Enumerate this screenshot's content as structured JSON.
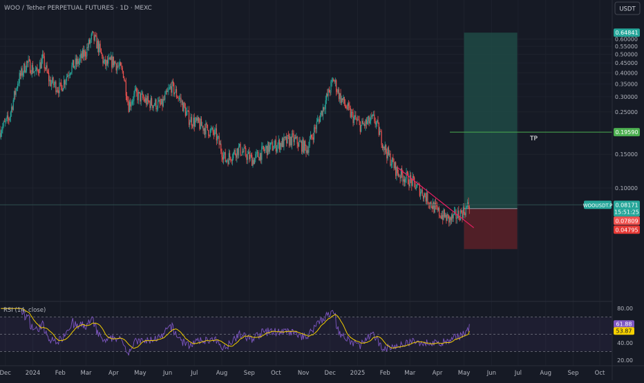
{
  "header": {
    "symbol_title": "WOO / Tether PERPETUAL FUTURES · 1D · MEXC",
    "currency_button": "USDT"
  },
  "rsi_panel": {
    "label": "RSI (14, close)"
  },
  "colors": {
    "background": "#161a25",
    "up": "#26a69a",
    "down": "#ef5350",
    "rsi_line": "#7e57c2",
    "rsi_ma": "#f5d000",
    "target_zone": "#1f4a45",
    "stop_zone": "#5b2128",
    "tp_line": "#4caf50",
    "trendline": "#e91e63"
  },
  "chart_data": [
    {
      "type": "candlestick",
      "title": "",
      "y_scale": "log",
      "ylim": [
        0.028,
        0.78
      ],
      "xlim": [
        "2023-11-25",
        "2025-10-15"
      ],
      "x_ticks": [
        {
          "label": "Dec",
          "date": "2023-12-01"
        },
        {
          "label": "2024",
          "date": "2024-01-01"
        },
        {
          "label": "Feb",
          "date": "2024-02-01"
        },
        {
          "label": "Mar",
          "date": "2024-03-01"
        },
        {
          "label": "Apr",
          "date": "2024-04-01"
        },
        {
          "label": "May",
          "date": "2024-05-01"
        },
        {
          "label": "Jun",
          "date": "2024-06-01"
        },
        {
          "label": "Jul",
          "date": "2024-07-01"
        },
        {
          "label": "Aug",
          "date": "2024-08-01"
        },
        {
          "label": "Sep",
          "date": "2024-09-01"
        },
        {
          "label": "Oct",
          "date": "2024-10-01"
        },
        {
          "label": "Nov",
          "date": "2024-11-01"
        },
        {
          "label": "Dec",
          "date": "2024-12-01"
        },
        {
          "label": "2025",
          "date": "2025-01-01"
        },
        {
          "label": "Feb",
          "date": "2025-02-01"
        },
        {
          "label": "Mar",
          "date": "2025-03-01"
        },
        {
          "label": "Apr",
          "date": "2025-04-01"
        },
        {
          "label": "May",
          "date": "2025-05-01"
        },
        {
          "label": "Jun",
          "date": "2025-06-01"
        },
        {
          "label": "Jul",
          "date": "2025-07-01"
        },
        {
          "label": "Aug",
          "date": "2025-08-01"
        },
        {
          "label": "Sep",
          "date": "2025-09-01"
        },
        {
          "label": "Oct",
          "date": "2025-10-01"
        }
      ],
      "y_ticks": [
        {
          "label": "0.60000",
          "value": 0.6
        },
        {
          "label": "0.55000",
          "value": 0.55
        },
        {
          "label": "0.50000",
          "value": 0.5
        },
        {
          "label": "0.45000",
          "value": 0.45
        },
        {
          "label": "0.40000",
          "value": 0.4
        },
        {
          "label": "0.35000",
          "value": 0.35
        },
        {
          "label": "0.30000",
          "value": 0.3
        },
        {
          "label": "0.25000",
          "value": 0.25
        },
        {
          "label": "0.15000",
          "value": 0.15
        },
        {
          "label": "0.10000",
          "value": 0.1
        }
      ],
      "price_path": [
        {
          "date": "2023-11-25",
          "close": 0.2
        },
        {
          "date": "2023-12-05",
          "close": 0.23
        },
        {
          "date": "2023-12-15",
          "close": 0.36
        },
        {
          "date": "2023-12-25",
          "close": 0.45
        },
        {
          "date": "2024-01-05",
          "close": 0.4
        },
        {
          "date": "2024-01-12",
          "close": 0.47
        },
        {
          "date": "2024-01-20",
          "close": 0.36
        },
        {
          "date": "2024-02-01",
          "close": 0.33
        },
        {
          "date": "2024-02-12",
          "close": 0.42
        },
        {
          "date": "2024-02-22",
          "close": 0.46
        },
        {
          "date": "2024-03-01",
          "close": 0.52
        },
        {
          "date": "2024-03-08",
          "close": 0.62
        },
        {
          "date": "2024-03-14",
          "close": 0.56
        },
        {
          "date": "2024-03-22",
          "close": 0.44
        },
        {
          "date": "2024-04-01",
          "close": 0.46
        },
        {
          "date": "2024-04-12",
          "close": 0.4
        },
        {
          "date": "2024-04-18",
          "close": 0.27
        },
        {
          "date": "2024-04-25",
          "close": 0.31
        },
        {
          "date": "2024-05-10",
          "close": 0.28
        },
        {
          "date": "2024-05-25",
          "close": 0.27
        },
        {
          "date": "2024-06-05",
          "close": 0.34
        },
        {
          "date": "2024-06-15",
          "close": 0.29
        },
        {
          "date": "2024-06-25",
          "close": 0.23
        },
        {
          "date": "2024-07-10",
          "close": 0.21
        },
        {
          "date": "2024-07-25",
          "close": 0.19
        },
        {
          "date": "2024-08-05",
          "close": 0.14
        },
        {
          "date": "2024-08-20",
          "close": 0.16
        },
        {
          "date": "2024-09-05",
          "close": 0.14
        },
        {
          "date": "2024-09-20",
          "close": 0.16
        },
        {
          "date": "2024-10-05",
          "close": 0.17
        },
        {
          "date": "2024-10-20",
          "close": 0.18
        },
        {
          "date": "2024-11-05",
          "close": 0.16
        },
        {
          "date": "2024-11-20",
          "close": 0.24
        },
        {
          "date": "2024-12-05",
          "close": 0.37
        },
        {
          "date": "2024-12-12",
          "close": 0.3
        },
        {
          "date": "2024-12-25",
          "close": 0.24
        },
        {
          "date": "2025-01-05",
          "close": 0.21
        },
        {
          "date": "2025-01-20",
          "close": 0.23
        },
        {
          "date": "2025-02-01",
          "close": 0.16
        },
        {
          "date": "2025-02-15",
          "close": 0.12
        },
        {
          "date": "2025-03-01",
          "close": 0.11
        },
        {
          "date": "2025-03-15",
          "close": 0.095
        },
        {
          "date": "2025-04-01",
          "close": 0.075
        },
        {
          "date": "2025-04-15",
          "close": 0.068
        },
        {
          "date": "2025-05-01",
          "close": 0.076
        },
        {
          "date": "2025-05-07",
          "close": 0.0817
        }
      ],
      "long_position": {
        "start": "2025-05-01",
        "end": "2025-06-30",
        "entry": 0.07809,
        "target": 0.64841,
        "stop": 0.04795
      },
      "tp_line": {
        "value": 0.1959,
        "label": "TP",
        "start": "2025-04-15"
      },
      "trendline": {
        "start": {
          "date": "2025-02-15",
          "value": 0.128
        },
        "end": {
          "date": "2025-05-12",
          "value": 0.062
        }
      },
      "horizontal_line": {
        "value": 0.0817
      },
      "price_labels": {
        "target": "0.64841",
        "tp": "0.19590",
        "symbol": "WOOUSDT.P",
        "last_price": "0.08171",
        "countdown": "15:51:25",
        "entry": "0.07809",
        "stop": "0.04795"
      }
    },
    {
      "type": "line",
      "title": "",
      "indicator": "RSI",
      "ylim": [
        15,
        85
      ],
      "y_ticks": [
        {
          "label": "80.00",
          "value": 80
        },
        {
          "label": "40.00",
          "value": 40
        },
        {
          "label": "20.00",
          "value": 20
        }
      ],
      "bands": [
        30,
        50,
        70
      ],
      "last_rsi": 61.88,
      "last_rsi_label": "61.88",
      "last_ma": 53.87,
      "last_ma_label": "53.87"
    }
  ]
}
